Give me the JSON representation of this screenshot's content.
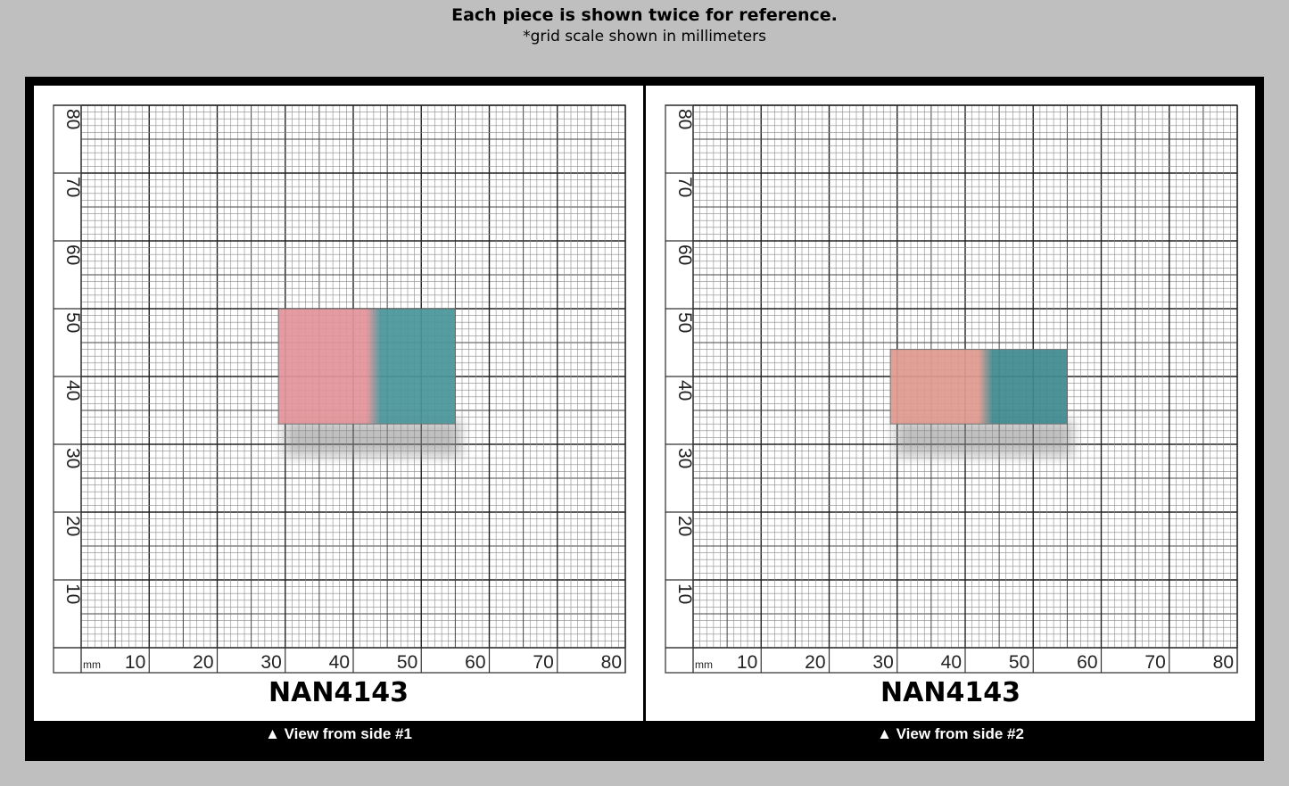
{
  "header": {
    "title": "Each piece is shown twice for reference.",
    "subtitle": "*grid scale shown in millimeters"
  },
  "grid": {
    "unit_label": "mm",
    "x_ticks": [
      "10",
      "20",
      "30",
      "40",
      "50",
      "60",
      "70",
      "80"
    ],
    "y_ticks": [
      "10",
      "20",
      "30",
      "40",
      "50",
      "60",
      "70",
      "80"
    ]
  },
  "panels": [
    {
      "sample_id": "NAN4143",
      "caption": "▲ View from side #1",
      "piece_mm": {
        "x0": 29,
        "x1": 55,
        "y0": 33,
        "y1": 50,
        "split": 42.5
      },
      "colors": {
        "left": "#e2949a",
        "right": "#4a969b"
      }
    },
    {
      "sample_id": "NAN4143",
      "caption": "▲ View from side #2",
      "piece_mm": {
        "x0": 29,
        "x1": 55,
        "y0": 33,
        "y1": 44,
        "split": 42.5
      },
      "colors": {
        "left": "#e09a90",
        "right": "#3f8a90"
      }
    }
  ]
}
